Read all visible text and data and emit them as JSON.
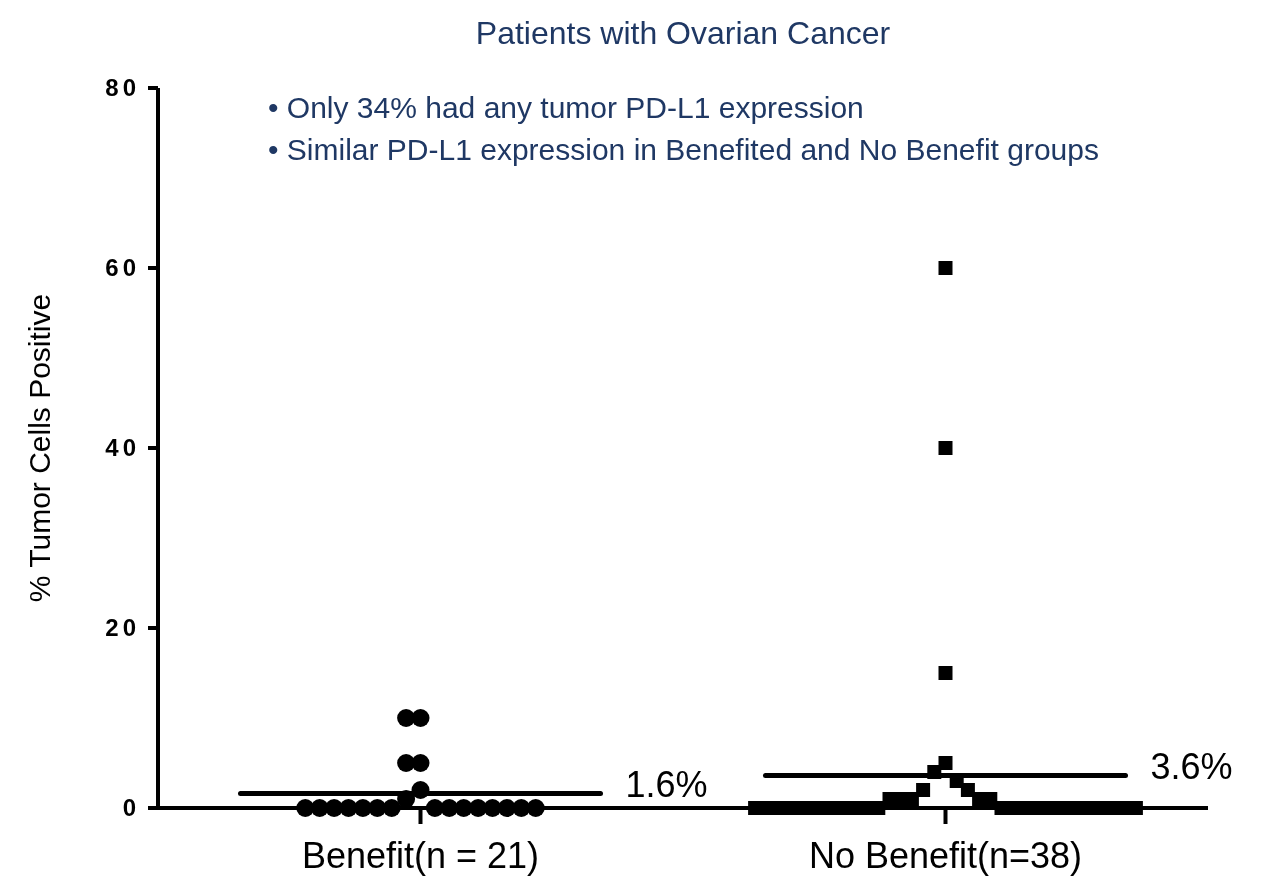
{
  "chart_data": {
    "type": "scatter",
    "title": "Patients with Ovarian Cancer",
    "ylabel": "% Tumor Cells Positive",
    "categories": [
      "Benefit(n = 21)",
      "No Benefit(n=38)"
    ],
    "series": [
      {
        "marker": "circle",
        "color": "#000000",
        "x": [
          "Benefit(n = 21)",
          "Benefit(n = 21)",
          "Benefit(n = 21)",
          "Benefit(n = 21)",
          "Benefit(n = 21)",
          "Benefit(n = 21)",
          "Benefit(n = 21)",
          "Benefit(n = 21)",
          "Benefit(n = 21)",
          "Benefit(n = 21)",
          "Benefit(n = 21)",
          "Benefit(n = 21)",
          "Benefit(n = 21)",
          "Benefit(n = 21)",
          "Benefit(n = 21)",
          "Benefit(n = 21)",
          "Benefit(n = 21)",
          "Benefit(n = 21)",
          "Benefit(n = 21)",
          "Benefit(n = 21)",
          "Benefit(n = 21)"
        ],
        "values": [
          10,
          10,
          5,
          5,
          2,
          1,
          0,
          0,
          0,
          0,
          0,
          0,
          0,
          0,
          0,
          0,
          0,
          0,
          0,
          0,
          0
        ]
      },
      {
        "marker": "square",
        "color": "#000000",
        "x": [
          "No Benefit(n=38)",
          "No Benefit(n=38)",
          "No Benefit(n=38)",
          "No Benefit(n=38)",
          "No Benefit(n=38)",
          "No Benefit(n=38)",
          "No Benefit(n=38)",
          "No Benefit(n=38)",
          "No Benefit(n=38)",
          "No Benefit(n=38)",
          "No Benefit(n=38)",
          "No Benefit(n=38)",
          "No Benefit(n=38)",
          "No Benefit(n=38)",
          "No Benefit(n=38)",
          "No Benefit(n=38)",
          "No Benefit(n=38)",
          "No Benefit(n=38)",
          "No Benefit(n=38)",
          "No Benefit(n=38)",
          "No Benefit(n=38)",
          "No Benefit(n=38)",
          "No Benefit(n=38)",
          "No Benefit(n=38)",
          "No Benefit(n=38)",
          "No Benefit(n=38)",
          "No Benefit(n=38)",
          "No Benefit(n=38)",
          "No Benefit(n=38)",
          "No Benefit(n=38)",
          "No Benefit(n=38)",
          "No Benefit(n=38)",
          "No Benefit(n=38)",
          "No Benefit(n=38)",
          "No Benefit(n=38)",
          "No Benefit(n=38)",
          "No Benefit(n=38)",
          "No Benefit(n=38)"
        ],
        "values": [
          60,
          40,
          15,
          5,
          4,
          3,
          2,
          2,
          1,
          1,
          1,
          1,
          1,
          0,
          0,
          0,
          0,
          0,
          0,
          0,
          0,
          0,
          0,
          0,
          0,
          0,
          0,
          0,
          0,
          0,
          0,
          0,
          0,
          0,
          0,
          0,
          0,
          0
        ]
      }
    ],
    "annotations": [
      "• Only 34% had any tumor PD-L1 expression",
      "• Similar PD-L1 expression in Benefited and No Benefit groups"
    ],
    "ref_lines": [
      {
        "axis": "y",
        "value": 1.6,
        "label": "1.6%"
      },
      {
        "axis": "y",
        "value": 3.6,
        "label": "3.6%"
      }
    ],
    "ylim": [
      0,
      80
    ],
    "yticks": [
      0,
      20,
      40,
      60,
      80
    ],
    "grid": false
  }
}
